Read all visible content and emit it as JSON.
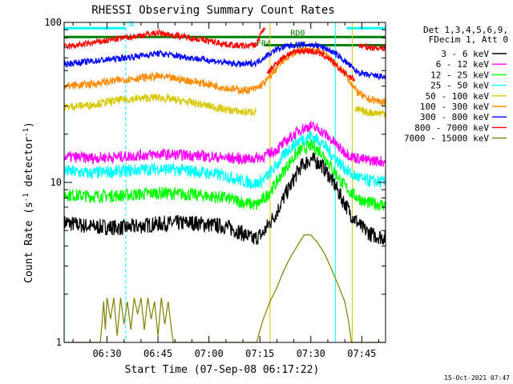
{
  "chart_data": {
    "type": "line",
    "title": "RHESSI Observing Summary Count Rates",
    "xlabel": "Start Time (07-Sep-08 06:17:22)",
    "ylabel": "Count Rate (s⁻¹ detector⁻¹)",
    "ylabel_prefix": "Count Rate (s",
    "ylabel_mid": " detector",
    "ylabel_suffix": ")",
    "ylabel_exp": "-1",
    "y_scale": "log",
    "ylim": [
      1,
      100
    ],
    "xlim_minutes": [
      17.37,
      112.0
    ],
    "x_ticks": [
      {
        "minutes": 30,
        "label": "06:30"
      },
      {
        "minutes": 45,
        "label": "06:45"
      },
      {
        "minutes": 60,
        "label": "07:00"
      },
      {
        "minutes": 75,
        "label": "07:15"
      },
      {
        "minutes": 90,
        "label": "07:30"
      },
      {
        "minutes": 105,
        "label": "07:45"
      }
    ],
    "y_ticks": [
      {
        "value": 1,
        "label": "1"
      },
      {
        "value": 10,
        "label": "10"
      },
      {
        "value": 100,
        "label": "100"
      }
    ],
    "legend_header": [
      "Det 1,3,4,5,6,9,",
      "FDecim 1, Att 0"
    ],
    "legend_position": "right",
    "series": [
      {
        "name": "3 - 6 keV",
        "color": "#000000",
        "noise": 0.05,
        "points": [
          [
            17.4,
            5.6
          ],
          [
            25,
            5.3
          ],
          [
            35,
            5.2
          ],
          [
            45,
            5.5
          ],
          [
            55,
            5.6
          ],
          [
            65,
            5.3
          ],
          [
            70,
            4.8
          ],
          [
            73,
            4.4
          ],
          [
            76,
            4.8
          ],
          [
            80,
            6.5
          ],
          [
            84,
            9.5
          ],
          [
            87,
            12.5
          ],
          [
            90,
            14.0
          ],
          [
            93,
            13.0
          ],
          [
            96,
            10.5
          ],
          [
            99,
            8.0
          ],
          [
            102,
            6.2
          ],
          [
            105,
            5.2
          ],
          [
            108,
            4.7
          ],
          [
            112,
            4.5
          ]
        ]
      },
      {
        "name": "6 - 12 keV",
        "color": "#ff00ff",
        "noise": 0.035,
        "points": [
          [
            17.4,
            14.5
          ],
          [
            25,
            14.2
          ],
          [
            35,
            14.5
          ],
          [
            45,
            15.0
          ],
          [
            55,
            14.8
          ],
          [
            65,
            14.2
          ],
          [
            72,
            14.0
          ],
          [
            76,
            14.5
          ],
          [
            80,
            16.0
          ],
          [
            84,
            19.0
          ],
          [
            87,
            21.5
          ],
          [
            90,
            22.5
          ],
          [
            93,
            21.0
          ],
          [
            96,
            18.5
          ],
          [
            99,
            16.0
          ],
          [
            102,
            14.5
          ],
          [
            106,
            13.8
          ],
          [
            112,
            13.5
          ]
        ]
      },
      {
        "name": "12 - 25 keV",
        "color": "#00ff00",
        "noise": 0.04,
        "points": [
          [
            17.4,
            8.4
          ],
          [
            25,
            8.2
          ],
          [
            35,
            8.3
          ],
          [
            45,
            8.6
          ],
          [
            55,
            8.4
          ],
          [
            65,
            8.0
          ],
          [
            70,
            7.5
          ],
          [
            74,
            7.2
          ],
          [
            77,
            8.2
          ],
          [
            80,
            10.0
          ],
          [
            84,
            13.5
          ],
          [
            87,
            16.0
          ],
          [
            90,
            17.0
          ],
          [
            93,
            15.5
          ],
          [
            96,
            12.5
          ],
          [
            99,
            10.0
          ],
          [
            102,
            8.5
          ],
          [
            106,
            7.5
          ],
          [
            112,
            7.2
          ]
        ]
      },
      {
        "name": "25 - 50 keV",
        "color": "#00ffff",
        "noise": 0.04,
        "points": [
          [
            17.4,
            11.8
          ],
          [
            25,
            11.4
          ],
          [
            35,
            11.8
          ],
          [
            45,
            12.2
          ],
          [
            55,
            11.8
          ],
          [
            65,
            11.0
          ],
          [
            70,
            10.2
          ],
          [
            74,
            9.8
          ],
          [
            77,
            10.8
          ],
          [
            80,
            12.8
          ],
          [
            84,
            16.5
          ],
          [
            87,
            18.5
          ],
          [
            90,
            19.5
          ],
          [
            93,
            18.0
          ],
          [
            96,
            15.0
          ],
          [
            99,
            12.8
          ],
          [
            102,
            11.2
          ],
          [
            106,
            10.3
          ],
          [
            112,
            10.0
          ]
        ]
      },
      {
        "name": "50 - 100 keV",
        "color": "#d8c800",
        "noise": 0.025,
        "points": [
          [
            17.4,
            29.5
          ],
          [
            25,
            30.5
          ],
          [
            35,
            33.0
          ],
          [
            45,
            34.0
          ],
          [
            55,
            31.5
          ],
          [
            65,
            28.5
          ],
          [
            70,
            27.5
          ],
          [
            74,
            27.8
          ]
        ],
        "points2": [
          [
            103,
            28.5
          ],
          [
            106,
            27.5
          ],
          [
            112,
            27.0
          ]
        ]
      },
      {
        "name": "100 - 300 keV",
        "color": "#ff8c00",
        "noise": 0.025,
        "points": [
          [
            17.4,
            40.0
          ],
          [
            25,
            41.0
          ],
          [
            35,
            44.0
          ],
          [
            45,
            46.0
          ],
          [
            55,
            43.0
          ],
          [
            65,
            39.0
          ],
          [
            70,
            37.5
          ],
          [
            74,
            38.5
          ],
          [
            77,
            43.0
          ],
          [
            80,
            52.0
          ],
          [
            83,
            61.0
          ],
          [
            86,
            66.0
          ],
          [
            89,
            68.0
          ],
          [
            92,
            67.0
          ],
          [
            95,
            62.0
          ],
          [
            98,
            53.0
          ],
          [
            101,
            45.0
          ],
          [
            103,
            38.0
          ],
          [
            106,
            33.5
          ],
          [
            112,
            31.5
          ]
        ]
      },
      {
        "name": "300 - 800 keV",
        "color": "#0000ff",
        "noise": 0.02,
        "points": [
          [
            17.4,
            55.0
          ],
          [
            25,
            57.0
          ],
          [
            35,
            60.0
          ],
          [
            45,
            64.0
          ],
          [
            55,
            60.0
          ],
          [
            65,
            56.0
          ],
          [
            70,
            54.5
          ],
          [
            74,
            56.0
          ],
          [
            77,
            62.0
          ],
          [
            80,
            68.0
          ],
          [
            83,
            71.0
          ],
          [
            86,
            72.5
          ],
          [
            89,
            72.5
          ],
          [
            92,
            71.5
          ],
          [
            95,
            68.0
          ],
          [
            98,
            62.0
          ],
          [
            101,
            55.0
          ],
          [
            103,
            50.0
          ],
          [
            106,
            47.0
          ],
          [
            112,
            45.5
          ]
        ]
      },
      {
        "name": "800 - 7000 keV",
        "color": "#ff0000",
        "noise": 0.02,
        "points": [
          [
            17.4,
            70.0
          ],
          [
            25,
            74.0
          ],
          [
            35,
            80.0
          ],
          [
            45,
            86.0
          ],
          [
            55,
            80.0
          ],
          [
            65,
            73.0
          ],
          [
            70,
            71.0
          ],
          [
            74,
            72.5
          ],
          [
            75.5,
            87.0
          ],
          [
            76.6,
            94.0
          ]
        ],
        "points2": [
          [
            77,
            47.0
          ],
          [
            80,
            56.0
          ],
          [
            83,
            63.0
          ],
          [
            86,
            66.0
          ],
          [
            89,
            66.5
          ],
          [
            92,
            65.0
          ],
          [
            95,
            60.0
          ],
          [
            98,
            52.0
          ],
          [
            101,
            46.5
          ],
          [
            103,
            44.0
          ]
        ],
        "points3": [
          [
            104,
            72.0
          ],
          [
            106,
            70.0
          ],
          [
            112,
            69.0
          ]
        ]
      },
      {
        "name": "7000 - 15000 keV",
        "color": "#808000",
        "noise": 0.0,
        "points": [
          [
            17.4,
            1.0
          ],
          [
            28,
            1.0
          ],
          [
            28.5,
            1.3
          ],
          [
            29,
            1.8
          ],
          [
            29.5,
            1.2
          ],
          [
            30,
            1.9
          ],
          [
            31,
            1.4
          ],
          [
            32,
            1.9
          ],
          [
            33,
            1.1
          ],
          [
            34,
            1.9
          ],
          [
            35,
            1.3
          ],
          [
            36,
            1.8
          ],
          [
            37,
            1.2
          ],
          [
            38,
            1.9
          ],
          [
            39,
            1.5
          ],
          [
            40,
            1.9
          ],
          [
            41,
            1.2
          ],
          [
            42,
            1.9
          ],
          [
            43,
            1.4
          ],
          [
            44,
            1.8
          ],
          [
            45,
            1.1
          ],
          [
            46,
            1.9
          ],
          [
            47,
            1.3
          ],
          [
            48,
            1.8
          ],
          [
            49,
            1.2
          ],
          [
            49.5,
            1.0
          ],
          [
            74,
            1.0
          ],
          [
            76,
            1.4
          ],
          [
            78,
            1.8
          ],
          [
            80,
            2.2
          ],
          [
            82,
            2.8
          ],
          [
            84,
            3.4
          ],
          [
            86,
            4.0
          ],
          [
            88,
            4.7
          ],
          [
            90,
            4.7
          ],
          [
            92,
            4.2
          ],
          [
            94,
            3.6
          ],
          [
            96,
            2.9
          ],
          [
            98,
            2.3
          ],
          [
            100,
            1.8
          ],
          [
            101,
            1.4
          ],
          [
            102,
            1.0
          ],
          [
            112,
            1.0
          ]
        ]
      }
    ],
    "status_bars": [
      {
        "name": "N",
        "color": "#00ffff",
        "y_value": 92,
        "segments": [
          [
            17.4,
            35.5
          ],
          [
            100.5,
            112
          ]
        ]
      },
      {
        "name": "RD0",
        "color": "#008000",
        "y_value": 81,
        "segments": [
          [
            17.4,
            112
          ]
        ]
      },
      {
        "name": "FR4",
        "color": "#008000",
        "y_value": 72,
        "segments": [
          [
            76.2,
            112
          ]
        ]
      }
    ],
    "vlines": [
      {
        "minutes": 17.4,
        "color": "#00ffff",
        "style": "solid"
      },
      {
        "minutes": 35.5,
        "color": "#00ffff",
        "style": "dashed"
      },
      {
        "minutes": 78.0,
        "color": "#d8c800",
        "style": "solid"
      },
      {
        "minutes": 97.2,
        "color": "#00ffff",
        "style": "solid"
      },
      {
        "minutes": 102.2,
        "color": "#d8c800",
        "style": "solid"
      },
      {
        "minutes": 112.0,
        "color": "#00ffff",
        "style": "dashed"
      }
    ]
  },
  "footer": {
    "timestamp": "15-Oct-2021 07:47"
  }
}
